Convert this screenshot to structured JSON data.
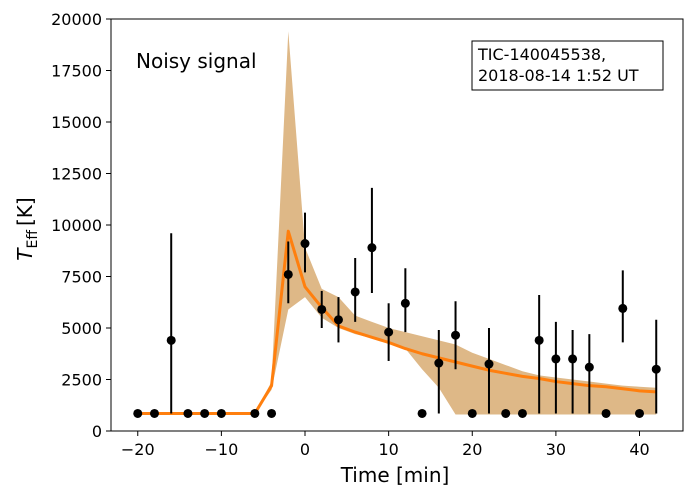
{
  "chart_data": {
    "type": "scatter",
    "xlabel": "Time [min]",
    "ylabel_base": "T",
    "ylabel_sub": "Eff",
    "ylabel_unit": "[K]",
    "xlim": [
      -23.2,
      45.2
    ],
    "ylim": [
      0,
      20000
    ],
    "xticks": [
      -20,
      -10,
      0,
      10,
      20,
      30,
      40
    ],
    "yticks": [
      0,
      2500,
      5000,
      7500,
      10000,
      12500,
      15000,
      17500,
      20000
    ],
    "annotation": "Noisy signal",
    "info_box": [
      "TIC-140045538,",
      "2018-08-14 1:52 UT"
    ],
    "colors": {
      "model_line": "#ff7f0e",
      "band": "#deb887",
      "points": "#000000"
    },
    "observations": [
      {
        "x": -20,
        "y": 850,
        "lo": 850,
        "hi": 850
      },
      {
        "x": -18,
        "y": 850,
        "lo": 850,
        "hi": 850
      },
      {
        "x": -16,
        "y": 4400,
        "lo": 850,
        "hi": 9600
      },
      {
        "x": -14,
        "y": 850,
        "lo": 850,
        "hi": 850
      },
      {
        "x": -12,
        "y": 850,
        "lo": 850,
        "hi": 850
      },
      {
        "x": -10,
        "y": 850,
        "lo": 850,
        "hi": 850
      },
      {
        "x": -6,
        "y": 850,
        "lo": 850,
        "hi": 850
      },
      {
        "x": -4,
        "y": 850,
        "lo": 850,
        "hi": 850
      },
      {
        "x": -2,
        "y": 7600,
        "lo": 6200,
        "hi": 9200
      },
      {
        "x": 0,
        "y": 9100,
        "lo": 7700,
        "hi": 10600
      },
      {
        "x": 2,
        "y": 5900,
        "lo": 5000,
        "hi": 6800
      },
      {
        "x": 4,
        "y": 5400,
        "lo": 4300,
        "hi": 6500
      },
      {
        "x": 6,
        "y": 6750,
        "lo": 5300,
        "hi": 8400
      },
      {
        "x": 8,
        "y": 8900,
        "lo": 6700,
        "hi": 11800
      },
      {
        "x": 10,
        "y": 4800,
        "lo": 3400,
        "hi": 6200
      },
      {
        "x": 12,
        "y": 6200,
        "lo": 4800,
        "hi": 7900
      },
      {
        "x": 14,
        "y": 850,
        "lo": 850,
        "hi": 850
      },
      {
        "x": 16,
        "y": 3300,
        "lo": 850,
        "hi": 4900
      },
      {
        "x": 18,
        "y": 4650,
        "lo": 3000,
        "hi": 6300
      },
      {
        "x": 20,
        "y": 850,
        "lo": 850,
        "hi": 850
      },
      {
        "x": 22,
        "y": 3250,
        "lo": 850,
        "hi": 5000
      },
      {
        "x": 24,
        "y": 850,
        "lo": 850,
        "hi": 850
      },
      {
        "x": 26,
        "y": 850,
        "lo": 850,
        "hi": 850
      },
      {
        "x": 28,
        "y": 4400,
        "lo": 850,
        "hi": 6600
      },
      {
        "x": 30,
        "y": 3500,
        "lo": 850,
        "hi": 5300
      },
      {
        "x": 32,
        "y": 3500,
        "lo": 850,
        "hi": 4900
      },
      {
        "x": 34,
        "y": 3100,
        "lo": 850,
        "hi": 4700
      },
      {
        "x": 36,
        "y": 850,
        "lo": 850,
        "hi": 850
      },
      {
        "x": 38,
        "y": 5950,
        "lo": 4300,
        "hi": 7800
      },
      {
        "x": 40,
        "y": 850,
        "lo": 850,
        "hi": 850
      },
      {
        "x": 42,
        "y": 3000,
        "lo": 850,
        "hi": 5400
      }
    ],
    "model": {
      "x": [
        -20,
        -18,
        -16,
        -14,
        -12,
        -10,
        -8,
        -6,
        -4,
        -2,
        0,
        2,
        4,
        6,
        8,
        10,
        12,
        14,
        16,
        18,
        20,
        22,
        24,
        26,
        28,
        30,
        32,
        34,
        36,
        38,
        40,
        42
      ],
      "y": [
        850,
        850,
        850,
        850,
        850,
        850,
        850,
        850,
        2200,
        9700,
        7000,
        6000,
        5100,
        4800,
        4550,
        4300,
        4000,
        3750,
        3550,
        3350,
        3150,
        2950,
        2800,
        2650,
        2550,
        2400,
        2300,
        2200,
        2150,
        2050,
        1950,
        1900
      ],
      "lower": [
        850,
        850,
        850,
        850,
        850,
        850,
        850,
        850,
        2000,
        5900,
        6500,
        5500,
        5000,
        4700,
        4500,
        4300,
        4000,
        3000,
        2100,
        800,
        800,
        800,
        800,
        800,
        800,
        800,
        800,
        800,
        800,
        800,
        800,
        800
      ],
      "upper": [
        850,
        850,
        850,
        850,
        850,
        850,
        850,
        850,
        2400,
        19400,
        8900,
        6900,
        6500,
        5600,
        5300,
        5000,
        4800,
        4600,
        4400,
        4200,
        3800,
        3500,
        3200,
        2900,
        2700,
        2600,
        2500,
        2400,
        2300,
        2200,
        2150,
        2100
      ]
    }
  }
}
